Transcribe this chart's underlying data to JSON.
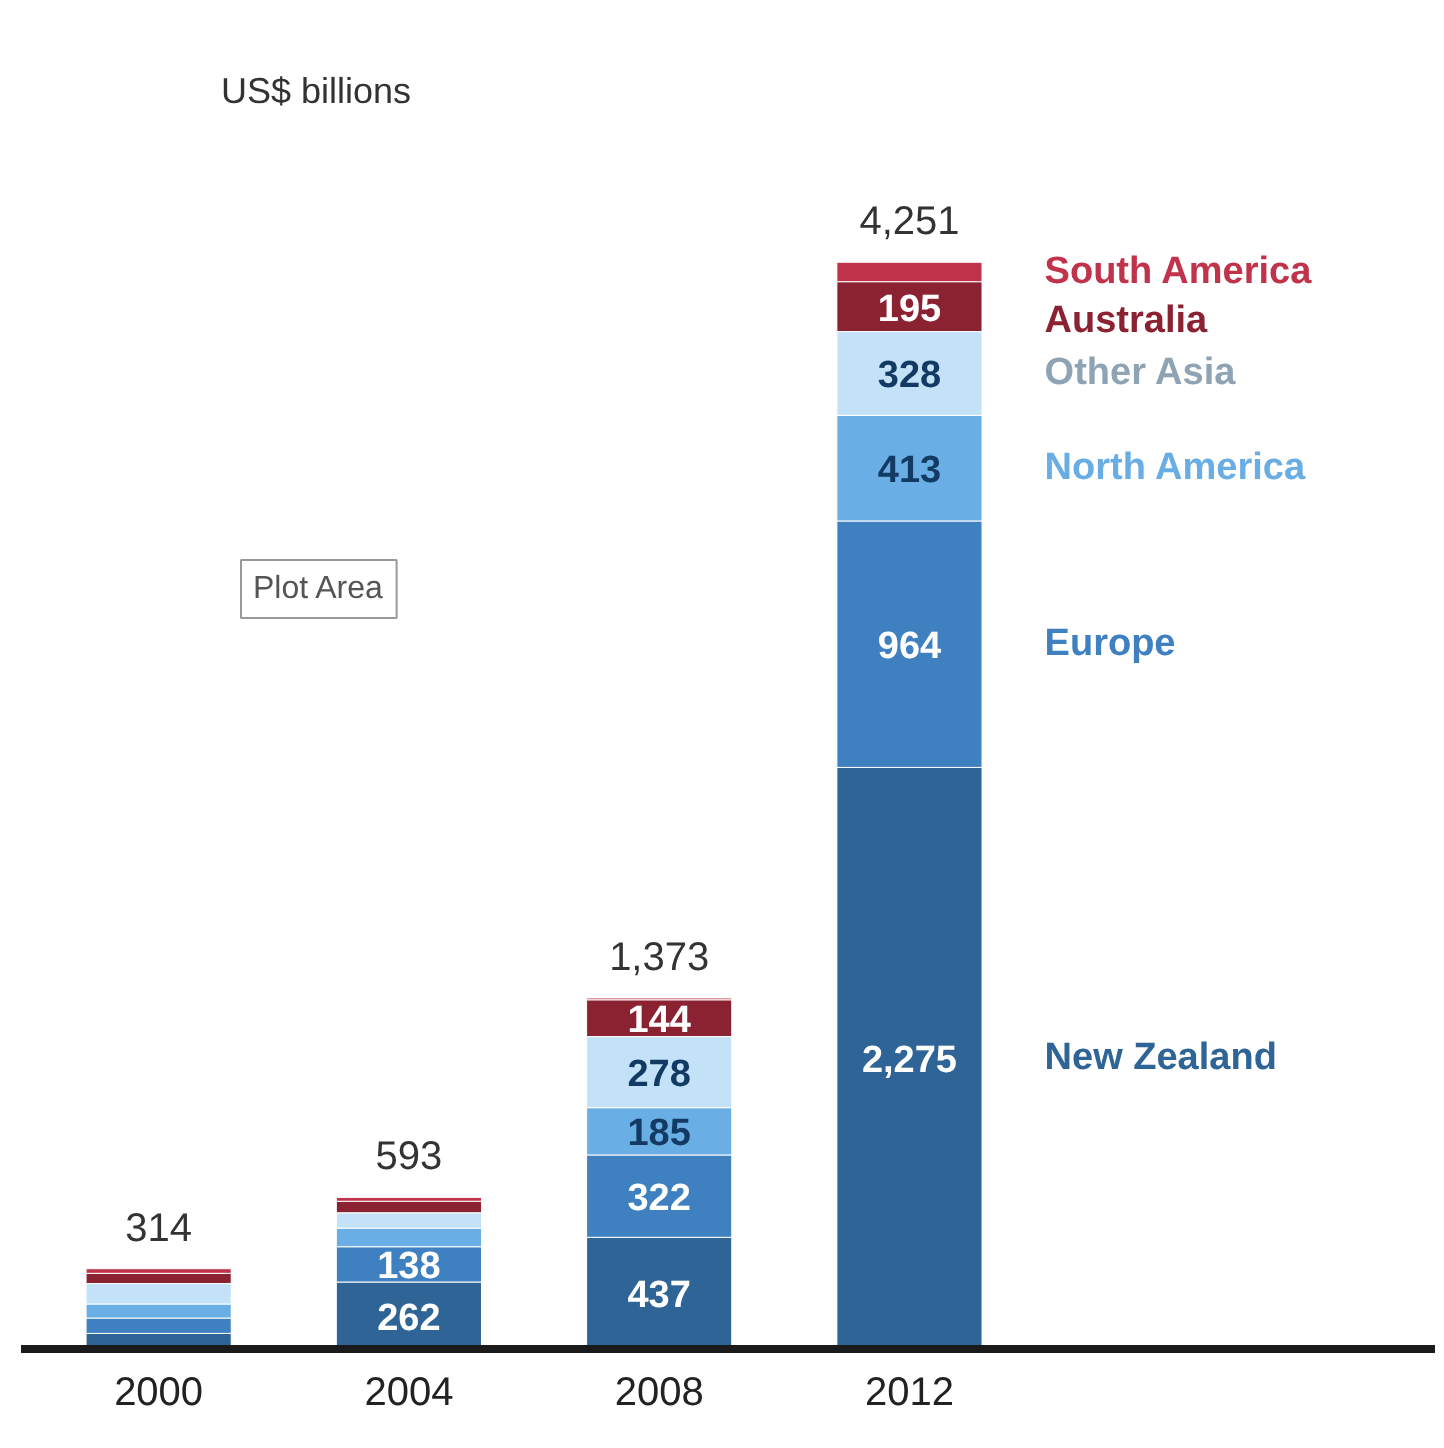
{
  "chart_data": {
    "type": "bar",
    "stacked": true,
    "ylabel": "US$ billions",
    "categories": [
      "2000",
      "2004",
      "2008",
      "2012"
    ],
    "series": [
      {
        "name": "New Zealand",
        "color": "#2f6596",
        "values": [
          61,
          262,
          437,
          2275
        ],
        "value_labels": [
          null,
          "262",
          "437",
          "2,275"
        ]
      },
      {
        "name": "Europe",
        "color": "#3f80c0",
        "values": [
          60,
          138,
          322,
          964
        ],
        "value_labels": [
          null,
          "138",
          "322",
          "964"
        ]
      },
      {
        "name": "North America",
        "color": "#6aaee6",
        "values": [
          55,
          73,
          185,
          413
        ],
        "value_labels": [
          null,
          null,
          "185",
          "413"
        ]
      },
      {
        "name": "Other Asia",
        "color": "#c4e2f7",
        "values": [
          80,
          60,
          278,
          328
        ],
        "value_labels": [
          null,
          null,
          "278",
          "328"
        ]
      },
      {
        "name": "Australia",
        "color": "#8b2232",
        "values": [
          40,
          45,
          144,
          195
        ],
        "value_labels": [
          null,
          null,
          "144",
          "195"
        ]
      },
      {
        "name": "South America",
        "color": "#c0334a",
        "values": [
          18,
          15,
          7,
          76
        ],
        "value_labels": [
          null,
          null,
          null,
          null
        ]
      }
    ],
    "totals": [
      "314",
      "593",
      "1,373",
      "4,251"
    ],
    "annotations": [
      "Plot Area"
    ]
  }
}
